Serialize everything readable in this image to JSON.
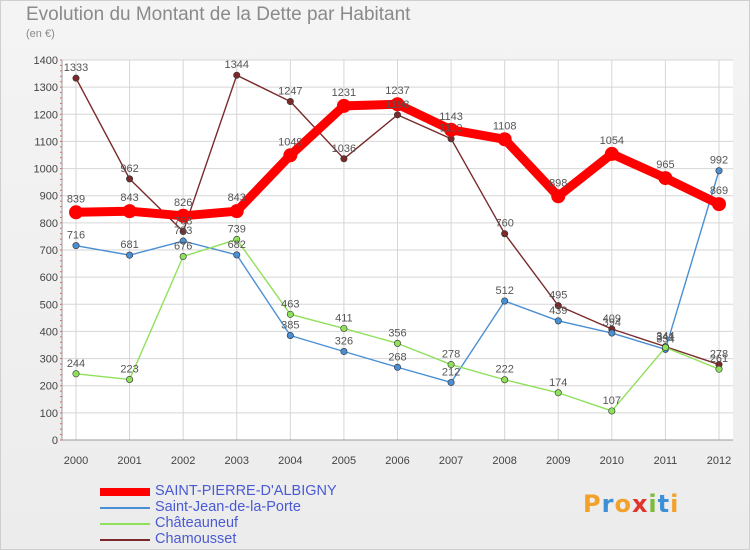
{
  "title": "Evolution du Montant de la Dette par Habitant",
  "subtitle": "(en €)",
  "logo": {
    "letters": [
      "P",
      "r",
      "o",
      "x",
      "i",
      "t",
      "i"
    ],
    "colors": [
      "#f2a22b",
      "#3d8fd6",
      "#f2a22b",
      "#e0352b",
      "#7dbb3c",
      "#3d8fd6",
      "#f2a22b"
    ]
  },
  "chart_data": {
    "type": "line",
    "x": [
      "2000",
      "2001",
      "2002",
      "2003",
      "2004",
      "2005",
      "2006",
      "2007",
      "2008",
      "2009",
      "2010",
      "2011",
      "2012"
    ],
    "ylim": [
      0,
      1400
    ],
    "yticks": [
      "0",
      "100",
      "200",
      "300",
      "400",
      "500",
      "600",
      "700",
      "800",
      "900",
      "1000",
      "1100",
      "1200",
      "1300",
      "1400"
    ],
    "grid": true,
    "legend_position": "bottom-left",
    "series": [
      {
        "name": "SAINT-PIERRE-D'ALBIGNY",
        "color": "#ff0000",
        "values": [
          839,
          843,
          826,
          843,
          1049,
          1231,
          1237,
          1143,
          1108,
          898,
          1054,
          965,
          869
        ],
        "labels": [
          "839",
          "843",
          "826",
          "843",
          "1049",
          "1231",
          "1237",
          "1143",
          "1108",
          "898",
          "1054",
          "965",
          "869"
        ]
      },
      {
        "name": "Saint-Jean-de-la-Porte",
        "color": "#4a8fd4",
        "values": [
          716,
          681,
          733,
          682,
          385,
          326,
          268,
          212,
          512,
          439,
          394,
          334,
          992
        ],
        "labels": [
          "716",
          "681",
          "733",
          "682",
          "385",
          "326",
          "268",
          "212",
          "512",
          "439",
          "394",
          "334",
          "992"
        ]
      },
      {
        "name": "Châteauneuf",
        "color": "#8fe05a",
        "values": [
          244,
          223,
          676,
          739,
          463,
          411,
          356,
          278,
          222,
          174,
          107,
          341,
          261
        ],
        "labels": [
          "244",
          "223",
          "676",
          "739",
          "463",
          "411",
          "356",
          "278",
          "222",
          "174",
          "107",
          "341",
          "261"
        ]
      },
      {
        "name": "Chamousset",
        "color": "#7a2a2a",
        "values": [
          1333,
          962,
          768,
          1344,
          1247,
          1036,
          1198,
          1110,
          760,
          495,
          409,
          344,
          278
        ],
        "labels": [
          "1333",
          "962",
          "768",
          "1344",
          "1247",
          "1036",
          "1198",
          "1110",
          "760",
          "495",
          "409",
          "344",
          "278"
        ]
      }
    ]
  }
}
